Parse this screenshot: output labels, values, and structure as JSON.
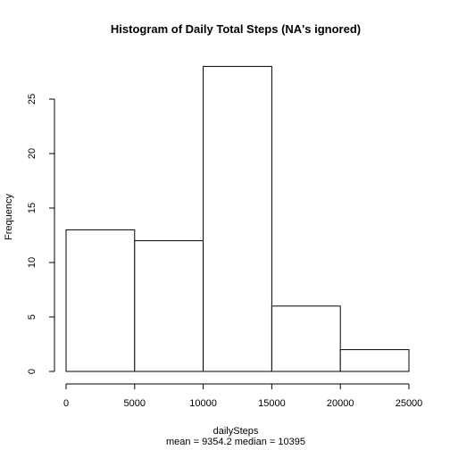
{
  "chart_data": {
    "type": "bar",
    "title": "Histogram of Daily Total Steps (NA's ignored)",
    "xlabel": "dailySteps",
    "subtitle": "mean = 9354.2  median = 10395",
    "ylabel": "Frequency",
    "bins": [
      {
        "start": 0,
        "end": 5000,
        "count": 13
      },
      {
        "start": 5000,
        "end": 10000,
        "count": 12
      },
      {
        "start": 10000,
        "end": 15000,
        "count": 28
      },
      {
        "start": 15000,
        "end": 20000,
        "count": 6
      },
      {
        "start": 20000,
        "end": 25000,
        "count": 2
      }
    ],
    "xlim": [
      0,
      25000
    ],
    "ylim": [
      0,
      28
    ],
    "xticks": [
      "0",
      "5000",
      "10000",
      "15000",
      "20000",
      "25000"
    ],
    "yticks": [
      "0",
      "5",
      "10",
      "15",
      "20",
      "25"
    ],
    "bar_fill": "#ffffff",
    "bar_stroke": "#000000",
    "grid": false
  }
}
